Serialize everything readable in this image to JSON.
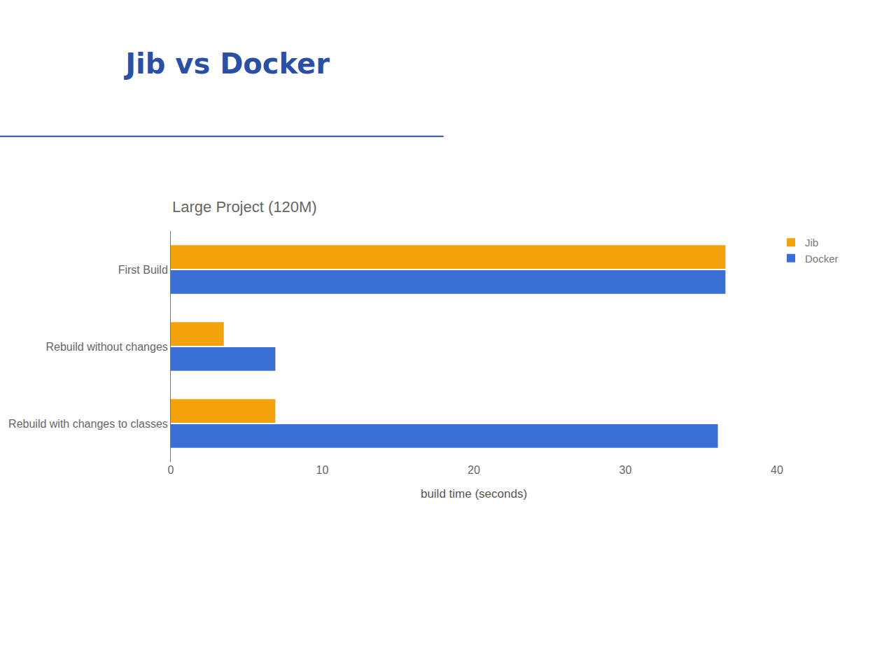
{
  "chart_data": {
    "type": "bar",
    "orientation": "horizontal",
    "title": "Jib vs Docker",
    "subtitle": "Large Project (120M)",
    "x_label": "build time (seconds)",
    "categories": [
      "First Build",
      "Rebuild without changes",
      "Rebuild with changes to classes"
    ],
    "series": [
      {
        "name": "Jib",
        "color": "#f4a20c",
        "values": [
          36.6,
          3.5,
          6.9
        ]
      },
      {
        "name": "Docker",
        "color": "#3a6fd6",
        "values": [
          36.6,
          6.9,
          36.1
        ]
      }
    ],
    "xlim": [
      0,
      40
    ],
    "xticks": [
      0,
      10,
      20,
      30,
      40
    ],
    "grid": false,
    "legend": "upper right"
  }
}
